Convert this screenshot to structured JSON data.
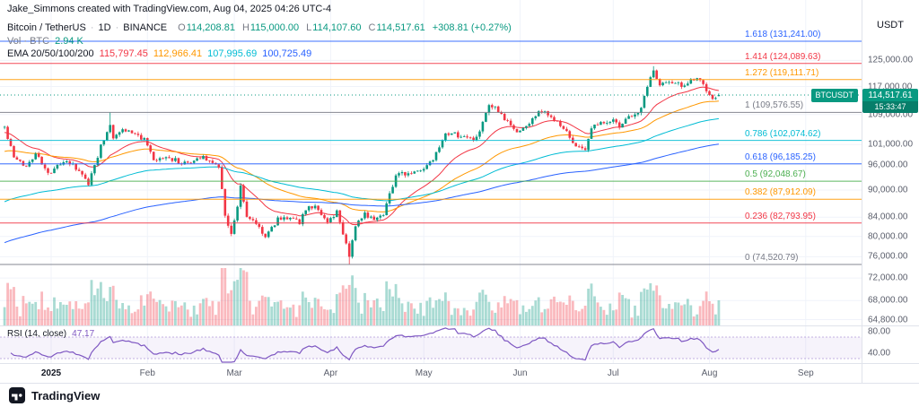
{
  "attribution": "Jake_Simmons created with TradingView.com, Aug 04, 2025 04:26 UTC-4",
  "header": {
    "symbol": "Bitcoin / TetherUS",
    "separator": "·",
    "interval": "1D",
    "exchange": "BINANCE",
    "ohlc": {
      "o_label": "O",
      "o_value": "114,208.81",
      "h_label": "H",
      "h_value": "115,000.00",
      "l_label": "L",
      "l_value": "114,107.60",
      "c_label": "C",
      "c_value": "114,517.61",
      "change": "+308.81 (+0.27%)"
    },
    "volume_row": {
      "label": "Vol · BTC",
      "value": "2.94 K"
    },
    "ema_row": {
      "label": "EMA 20/50/100/200",
      "values": [
        "115,797.45",
        "112,966.41",
        "107,995.69",
        "100,725.49"
      ],
      "colors": [
        "#F23645",
        "#FF9800",
        "#00BCD4",
        "#2962FF"
      ]
    }
  },
  "price_axis": {
    "currency": "USDT",
    "labels": [
      {
        "text": "125,000.00",
        "value": 125000
      },
      {
        "text": "117,000.00",
        "value": 117000
      },
      {
        "text": "109,000.00",
        "value": 109000
      },
      {
        "text": "101,000.00",
        "value": 101000
      },
      {
        "text": "96,000.00",
        "value": 96000
      },
      {
        "text": "90,000.00",
        "value": 90000
      },
      {
        "text": "84,000.00",
        "value": 84000
      },
      {
        "text": "80,000.00",
        "value": 80000
      },
      {
        "text": "76,000.00",
        "value": 76000
      },
      {
        "text": "72,000.00",
        "value": 72000
      },
      {
        "text": "68,000.00",
        "value": 68000
      },
      {
        "text": "64,800.00",
        "value": 64800
      }
    ],
    "last": {
      "symbol_tag": "BTCUSDT",
      "price": "114,517.61",
      "countdown": "15:33:47",
      "value": 114517.61,
      "bg": "#089981"
    }
  },
  "fib_levels": [
    {
      "label": "1.618 (131,241.00)",
      "value": 131241.0,
      "color": "#2962FF"
    },
    {
      "label": "1.414 (124,089.63)",
      "value": 124089.63,
      "color": "#F23645"
    },
    {
      "label": "1.272 (119,111.71)",
      "value": 119111.71,
      "color": "#FF9800"
    },
    {
      "label": "1 (109,576.55)",
      "value": 109576.55,
      "color": "#787B86"
    },
    {
      "label": "0.786 (102,074.62)",
      "value": 102074.62,
      "color": "#00BCD4"
    },
    {
      "label": "0.618 (96,185.25)",
      "value": 96185.25,
      "color": "#2962FF"
    },
    {
      "label": "0.5 (92,048.67)",
      "value": 92048.67,
      "color": "#4CAF50"
    },
    {
      "label": "0.382 (87,912.09)",
      "value": 87912.09,
      "color": "#FF9800"
    },
    {
      "label": "0.236 (82,793.95)",
      "value": 82793.95,
      "color": "#F23645"
    },
    {
      "label": "0 (74,520.79)",
      "value": 74520.79,
      "color": "#787B86"
    }
  ],
  "time_axis": {
    "labels": [
      {
        "text": "2025",
        "day": 15,
        "bold": true
      },
      {
        "text": "Feb",
        "day": 46,
        "bold": false
      },
      {
        "text": "Mar",
        "day": 74,
        "bold": false
      },
      {
        "text": "Apr",
        "day": 105,
        "bold": false
      },
      {
        "text": "May",
        "day": 135,
        "bold": false
      },
      {
        "text": "Jun",
        "day": 166,
        "bold": false
      },
      {
        "text": "Jul",
        "day": 196,
        "bold": false
      },
      {
        "text": "Aug",
        "day": 227,
        "bold": false
      },
      {
        "text": "Sep",
        "day": 258,
        "bold": false
      }
    ]
  },
  "rsi_pane": {
    "label": "RSI (14, close)",
    "value": "47.17",
    "line_color": "#7E57C2",
    "band": [
      30,
      70
    ],
    "axis_labels": [
      {
        "text": "80.00",
        "value": 80
      },
      {
        "text": "40.00",
        "value": 40
      }
    ]
  },
  "footer": {
    "logo_text": "TradingView"
  },
  "chart_data": {
    "type": "candlestick",
    "symbol": "BTCUSDT",
    "exchange": "BINANCE",
    "interval": "1D",
    "price_scale": "log",
    "day0_date": "2024-12-17",
    "last_date": "2025-08-04",
    "last_candle": {
      "open": 114208.81,
      "high": 115000.0,
      "low": 114107.6,
      "close": 114517.61,
      "change": 308.81,
      "change_pct": 0.27,
      "volume": "2.94 K"
    },
    "ema": {
      "periods": [
        20,
        50,
        100,
        200
      ],
      "current_values": [
        115797.45,
        112966.41,
        107995.69,
        100725.49
      ],
      "seeds": [
        104000,
        99000,
        87000,
        78500
      ]
    },
    "rsi": {
      "period": 14,
      "current_value": 47.17
    },
    "fib_retracement": {
      "level_0": 74520.79,
      "level_1": 109576.55
    },
    "y_ticks": [
      125000,
      117000,
      109000,
      101000,
      96000,
      90000,
      84000,
      80000,
      76000,
      72000,
      68000,
      64800
    ],
    "rsi_ticks": [
      80,
      40
    ],
    "waypoints_day_price": [
      [
        0,
        105500
      ],
      [
        3,
        97500
      ],
      [
        7,
        95500
      ],
      [
        10,
        99000
      ],
      [
        14,
        93500
      ],
      [
        15,
        94400
      ],
      [
        20,
        97000
      ],
      [
        23,
        95000
      ],
      [
        27,
        91500
      ],
      [
        31,
        100500
      ],
      [
        34,
        106500
      ],
      [
        35,
        103000
      ],
      [
        38,
        105000
      ],
      [
        41,
        104200
      ],
      [
        45,
        102200
      ],
      [
        48,
        96800
      ],
      [
        53,
        97800
      ],
      [
        57,
        96300
      ],
      [
        60,
        96500
      ],
      [
        64,
        98200
      ],
      [
        67,
        96200
      ],
      [
        69,
        95800
      ],
      [
        71,
        84500
      ],
      [
        73,
        80500
      ],
      [
        75,
        86000
      ],
      [
        76,
        91000
      ],
      [
        78,
        84200
      ],
      [
        81,
        82800
      ],
      [
        84,
        79900
      ],
      [
        88,
        83600
      ],
      [
        92,
        84100
      ],
      [
        95,
        83000
      ],
      [
        98,
        86500
      ],
      [
        101,
        85900
      ],
      [
        104,
        82500
      ],
      [
        107,
        85100
      ],
      [
        110,
        78600
      ],
      [
        111,
        76300
      ],
      [
        112,
        79500
      ],
      [
        113,
        82100
      ],
      [
        116,
        84600
      ],
      [
        119,
        83900
      ],
      [
        122,
        84900
      ],
      [
        126,
        93400
      ],
      [
        130,
        93900
      ],
      [
        134,
        94400
      ],
      [
        138,
        96900
      ],
      [
        142,
        103300
      ],
      [
        145,
        103700
      ],
      [
        148,
        102800
      ],
      [
        152,
        102500
      ],
      [
        156,
        111000
      ],
      [
        158,
        110600
      ],
      [
        161,
        107600
      ],
      [
        165,
        104300
      ],
      [
        168,
        105600
      ],
      [
        171,
        108900
      ],
      [
        174,
        110100
      ],
      [
        177,
        107300
      ],
      [
        180,
        105300
      ],
      [
        183,
        101500
      ],
      [
        187,
        99800
      ],
      [
        189,
        105700
      ],
      [
        192,
        107000
      ],
      [
        195,
        107500
      ],
      [
        198,
        106100
      ],
      [
        201,
        108300
      ],
      [
        205,
        110300
      ],
      [
        207,
        117500
      ],
      [
        209,
        121600
      ],
      [
        211,
        117800
      ],
      [
        213,
        118300
      ],
      [
        216,
        117800
      ],
      [
        219,
        117300
      ],
      [
        221,
        118900
      ],
      [
        223,
        119200
      ],
      [
        225,
        117800
      ],
      [
        226,
        115900
      ],
      [
        228,
        112700
      ],
      [
        229,
        113900
      ],
      [
        230,
        114517.61
      ]
    ],
    "wick_overrides": {
      "34": {
        "high": 109588
      },
      "111": {
        "low": 74520.79
      },
      "209": {
        "high": 123218
      }
    },
    "colors": {
      "up": "#089981",
      "down": "#F23645",
      "grid": "#F0F3FA",
      "divider": "#E0E3EB",
      "axis_text": "#5A5E6B"
    }
  }
}
